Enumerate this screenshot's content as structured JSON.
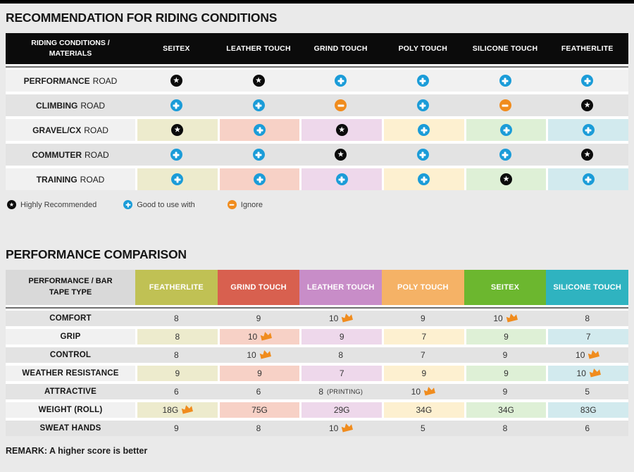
{
  "colors": {
    "accent-blue": "#1b9cd8",
    "accent-orange": "#f08c1e",
    "star-black": "#0b0b0b",
    "col-featherlite": "#c0c154",
    "col-grind": "#d8604f",
    "col-leather": "#c88dc8",
    "col-poly": "#f5b266",
    "col-seitex": "#6cb72f",
    "col-silicone": "#2fb3c0",
    "tint-1": "#edebcd",
    "tint-2": "#f7d1c6",
    "tint-3": "#eed8eb",
    "tint-4": "#fdf0d0",
    "tint-5": "#def0d6",
    "tint-6": "#d2eaee"
  },
  "recommendation": {
    "title": "RECOMMENDATION FOR RIDING CONDITIONS",
    "header": {
      "label": "RIDING CONDITIONS / MATERIALS",
      "columns": [
        "SEITEX",
        "LEATHER TOUCH",
        "GRIND TOUCH",
        "POLY TOUCH",
        "SILICONE TOUCH",
        "FEATHERLITE"
      ]
    },
    "rows": [
      {
        "name": "PERFORMANCE",
        "suffix": "ROAD",
        "tinted": false,
        "icons": [
          "star",
          "star",
          "plus",
          "plus",
          "plus",
          "plus"
        ]
      },
      {
        "name": "CLIMBING",
        "suffix": "ROAD",
        "tinted": false,
        "icons": [
          "plus",
          "plus",
          "minus",
          "plus",
          "minus",
          "star"
        ]
      },
      {
        "name": "GRAVEL/CX",
        "suffix": "ROAD",
        "tinted": true,
        "icons": [
          "star",
          "plus",
          "star",
          "plus",
          "plus",
          "plus"
        ]
      },
      {
        "name": "COMMUTER",
        "suffix": "ROAD",
        "tinted": false,
        "icons": [
          "plus",
          "plus",
          "star",
          "plus",
          "plus",
          "star"
        ]
      },
      {
        "name": "TRAINING",
        "suffix": "ROAD",
        "tinted": true,
        "icons": [
          "plus",
          "plus",
          "plus",
          "plus",
          "star",
          "plus"
        ]
      }
    ],
    "legend": [
      {
        "icon": "star",
        "label": "Highly Recommended"
      },
      {
        "icon": "plus",
        "label": "Good to use with"
      },
      {
        "icon": "minus",
        "label": "Ignore"
      }
    ]
  },
  "performance": {
    "title": "PERFORMANCE COMPARISON",
    "header": {
      "label": "PERFORMANCE / BAR TAPE TYPE",
      "columns": [
        "FEATHERLITE",
        "GRIND TOUCH",
        "LEATHER TOUCH",
        "POLY TOUCH",
        "SEITEX",
        "SILICONE TOUCH"
      ]
    },
    "rows": [
      {
        "label": "COMFORT",
        "tinted": false,
        "values": [
          {
            "v": "8"
          },
          {
            "v": "9"
          },
          {
            "v": "10",
            "crown": true
          },
          {
            "v": "9"
          },
          {
            "v": "10",
            "crown": true
          },
          {
            "v": "8"
          }
        ]
      },
      {
        "label": "GRIP",
        "tinted": true,
        "values": [
          {
            "v": "8"
          },
          {
            "v": "10",
            "crown": true
          },
          {
            "v": "9"
          },
          {
            "v": "7"
          },
          {
            "v": "9"
          },
          {
            "v": "7"
          }
        ]
      },
      {
        "label": "CONTROL",
        "tinted": false,
        "values": [
          {
            "v": "8"
          },
          {
            "v": "10",
            "crown": true
          },
          {
            "v": "8"
          },
          {
            "v": "7"
          },
          {
            "v": "9"
          },
          {
            "v": "10",
            "crown": true
          }
        ]
      },
      {
        "label": "WEATHER RESISTANCE",
        "tinted": true,
        "values": [
          {
            "v": "9"
          },
          {
            "v": "9"
          },
          {
            "v": "7"
          },
          {
            "v": "9"
          },
          {
            "v": "9"
          },
          {
            "v": "10",
            "crown": true
          }
        ]
      },
      {
        "label": "ATTRACTIVE",
        "tinted": false,
        "values": [
          {
            "v": "6"
          },
          {
            "v": "6"
          },
          {
            "v": "8",
            "note": "(PRINTING)"
          },
          {
            "v": "10",
            "crown": true
          },
          {
            "v": "9"
          },
          {
            "v": "5"
          }
        ]
      },
      {
        "label": "WEIGHT (ROLL)",
        "tinted": true,
        "values": [
          {
            "v": "18G",
            "crown": true
          },
          {
            "v": "75G"
          },
          {
            "v": "29G"
          },
          {
            "v": "34G"
          },
          {
            "v": "34G"
          },
          {
            "v": "83G"
          }
        ]
      },
      {
        "label": "SWEAT HANDS",
        "tinted": false,
        "values": [
          {
            "v": "9"
          },
          {
            "v": "8"
          },
          {
            "v": "10",
            "crown": true
          },
          {
            "v": "5"
          },
          {
            "v": "8"
          },
          {
            "v": "6"
          }
        ]
      }
    ],
    "remark": "REMARK: A higher score is better"
  },
  "chart_data": [
    {
      "type": "table",
      "title": "RECOMMENDATION FOR RIDING CONDITIONS",
      "columns": [
        "RIDING CONDITIONS / MATERIALS",
        "SEITEX",
        "LEATHER TOUCH",
        "GRIND TOUCH",
        "POLY TOUCH",
        "SILICONE TOUCH",
        "FEATHERLITE"
      ],
      "rows": [
        [
          "PERFORMANCE ROAD",
          "highly-recommended",
          "highly-recommended",
          "good-to-use-with",
          "good-to-use-with",
          "good-to-use-with",
          "good-to-use-with"
        ],
        [
          "CLIMBING ROAD",
          "good-to-use-with",
          "good-to-use-with",
          "ignore",
          "good-to-use-with",
          "ignore",
          "highly-recommended"
        ],
        [
          "GRAVEL/CX ROAD",
          "highly-recommended",
          "good-to-use-with",
          "highly-recommended",
          "good-to-use-with",
          "good-to-use-with",
          "good-to-use-with"
        ],
        [
          "COMMUTER ROAD",
          "good-to-use-with",
          "good-to-use-with",
          "highly-recommended",
          "good-to-use-with",
          "good-to-use-with",
          "highly-recommended"
        ],
        [
          "TRAINING ROAD",
          "good-to-use-with",
          "good-to-use-with",
          "good-to-use-with",
          "good-to-use-with",
          "highly-recommended",
          "good-to-use-with"
        ]
      ],
      "legend": [
        "Highly Recommended",
        "Good to use with",
        "Ignore"
      ]
    },
    {
      "type": "table",
      "title": "PERFORMANCE COMPARISON",
      "columns": [
        "PERFORMANCE / BAR TAPE TYPE",
        "FEATHERLITE",
        "GRIND TOUCH",
        "LEATHER TOUCH",
        "POLY TOUCH",
        "SEITEX",
        "SILICONE TOUCH"
      ],
      "rows": [
        [
          "COMFORT",
          "8",
          "9",
          "10 (best)",
          "9",
          "10 (best)",
          "8"
        ],
        [
          "GRIP",
          "8",
          "10 (best)",
          "9",
          "7",
          "9",
          "7"
        ],
        [
          "CONTROL",
          "8",
          "10 (best)",
          "8",
          "7",
          "9",
          "10 (best)"
        ],
        [
          "WEATHER RESISTANCE",
          "9",
          "9",
          "7",
          "9",
          "9",
          "10 (best)"
        ],
        [
          "ATTRACTIVE",
          "6",
          "6",
          "8 (PRINTING)",
          "10 (best)",
          "9",
          "5"
        ],
        [
          "WEIGHT (ROLL)",
          "18G (best)",
          "75G",
          "29G",
          "34G",
          "34G",
          "83G"
        ],
        [
          "SWEAT HANDS",
          "9",
          "8",
          "10 (best)",
          "5",
          "8",
          "6"
        ]
      ],
      "remark": "REMARK: A higher score is better"
    }
  ]
}
